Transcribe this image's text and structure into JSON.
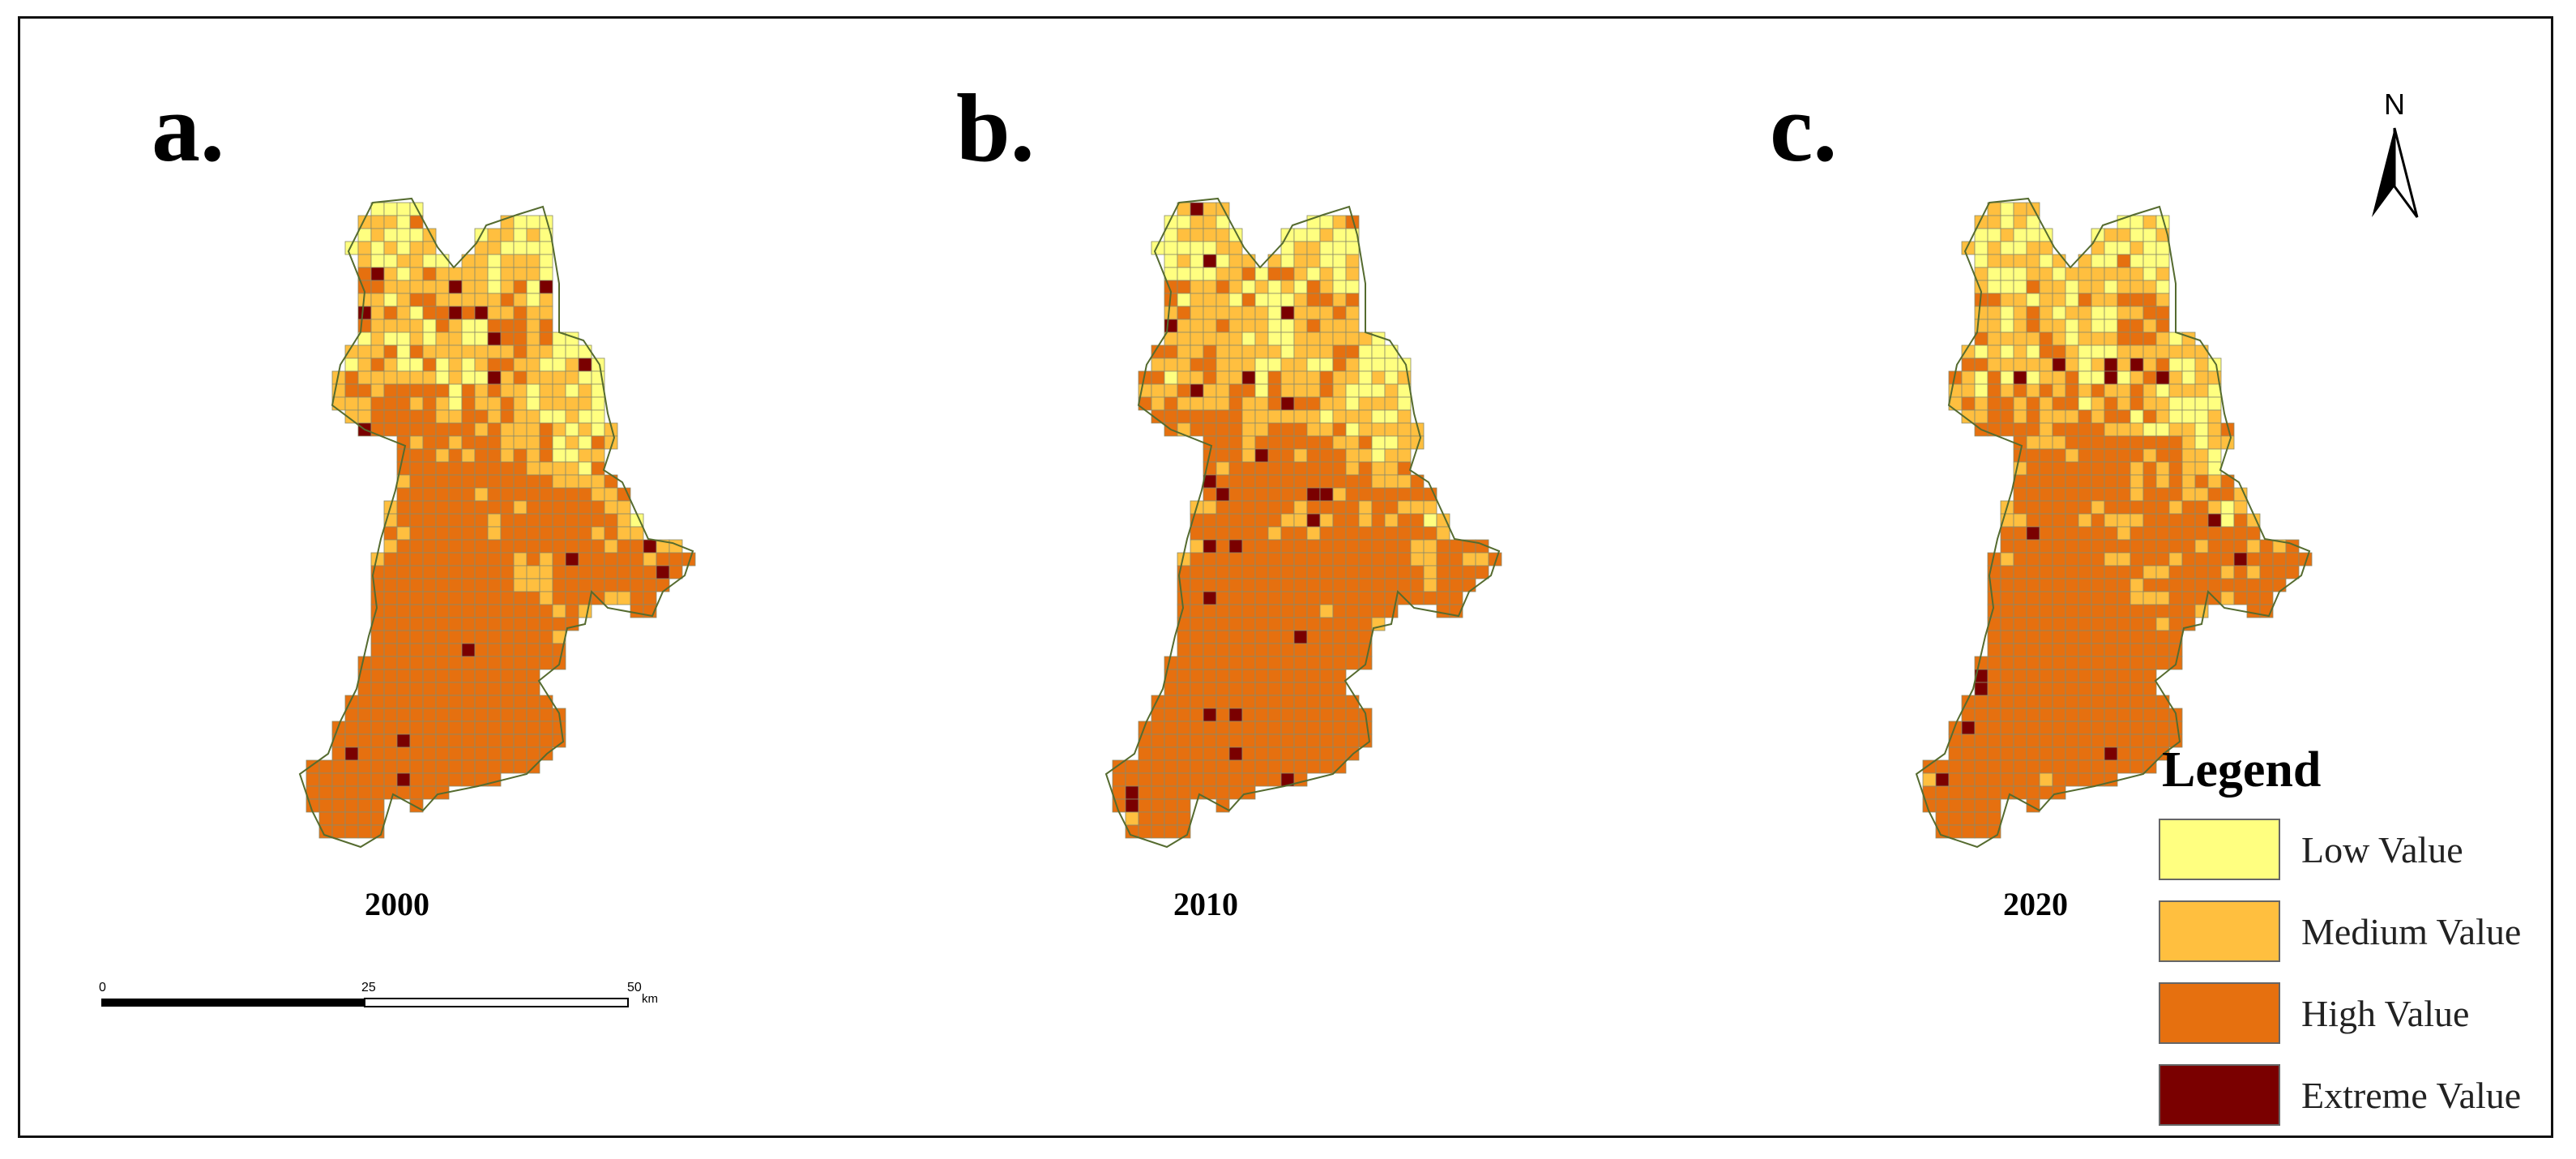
{
  "panels": [
    {
      "letter": "a.",
      "year": "2000"
    },
    {
      "letter": "b.",
      "year": "2010"
    },
    {
      "letter": "c.",
      "year": "2020"
    }
  ],
  "legend": {
    "title": "Legend",
    "items": [
      {
        "label": "Low Value",
        "color": "#ffff80"
      },
      {
        "label": "Medium Value",
        "color": "#ffbf3f"
      },
      {
        "label": "High Value",
        "color": "#e6700f"
      },
      {
        "label": "Extreme Value",
        "color": "#7a0000"
      }
    ]
  },
  "north_arrow": {
    "letter": "N"
  },
  "scale_bar": {
    "ticks": [
      "0",
      "25",
      "50"
    ],
    "unit": "km"
  }
}
